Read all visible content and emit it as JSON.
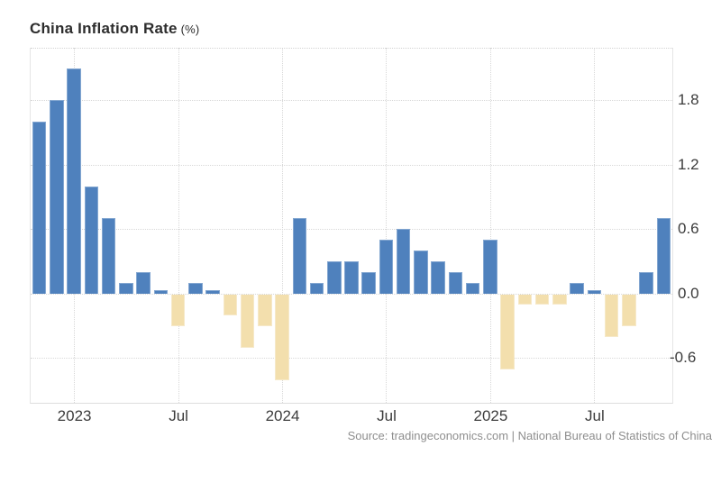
{
  "header": {
    "title": "China Inflation Rate",
    "unit": "(%)"
  },
  "source": {
    "text": "Source: tradingeconomics.com | National Bureau of Statistics of China"
  },
  "chart_data": {
    "type": "bar",
    "title": "China Inflation Rate",
    "ylabel_unit": "%",
    "x": [
      "2022-11",
      "2022-12",
      "2023-01",
      "2023-02",
      "2023-03",
      "2023-04",
      "2023-05",
      "2023-06",
      "2023-07",
      "2023-08",
      "2023-09",
      "2023-10",
      "2023-11",
      "2023-12",
      "2024-01",
      "2024-02",
      "2024-03",
      "2024-04",
      "2024-05",
      "2024-06",
      "2024-07",
      "2024-08",
      "2024-09",
      "2024-10",
      "2024-11",
      "2024-12",
      "2025-01",
      "2025-02",
      "2025-03",
      "2025-04",
      "2025-05",
      "2025-06",
      "2025-07",
      "2025-08",
      "2025-09",
      "2025-10",
      "2025-11"
    ],
    "values": [
      1.6,
      1.8,
      2.1,
      1.0,
      0.7,
      0.1,
      0.2,
      0.0,
      -0.3,
      0.1,
      0.0,
      -0.2,
      -0.5,
      -0.3,
      -0.8,
      0.7,
      0.1,
      0.3,
      0.3,
      0.2,
      0.5,
      0.6,
      0.4,
      0.3,
      0.2,
      0.1,
      0.5,
      -0.7,
      -0.1,
      -0.1,
      -0.1,
      0.1,
      0.0,
      -0.4,
      -0.3,
      0.2,
      0.7
    ],
    "x_ticks": [
      {
        "index": 2,
        "label": "2023"
      },
      {
        "index": 8,
        "label": "Jul"
      },
      {
        "index": 14,
        "label": "2024"
      },
      {
        "index": 20,
        "label": "Jul"
      },
      {
        "index": 26,
        "label": "2025"
      },
      {
        "index": 32,
        "label": "Jul"
      }
    ],
    "y_ticks": [
      {
        "label": "1.8",
        "value": 1.8
      },
      {
        "label": "1.2",
        "value": 1.2
      },
      {
        "label": "0.6",
        "value": 0.6
      },
      {
        "label": "0.0",
        "value": 0.0
      },
      {
        "label": "-0.6",
        "value": -0.6
      }
    ],
    "ylim": [
      -1.02,
      2.29
    ],
    "grid": "dotted",
    "legend_position": "none",
    "colors": {
      "positive_bar": "#4f81bd",
      "negative_bar": "#f3dfad",
      "gridline": "#d8d8d8",
      "axis_text": "#3c3c3c",
      "title_text": "#2d2d2d",
      "source_text": "#8e8e8e"
    }
  }
}
